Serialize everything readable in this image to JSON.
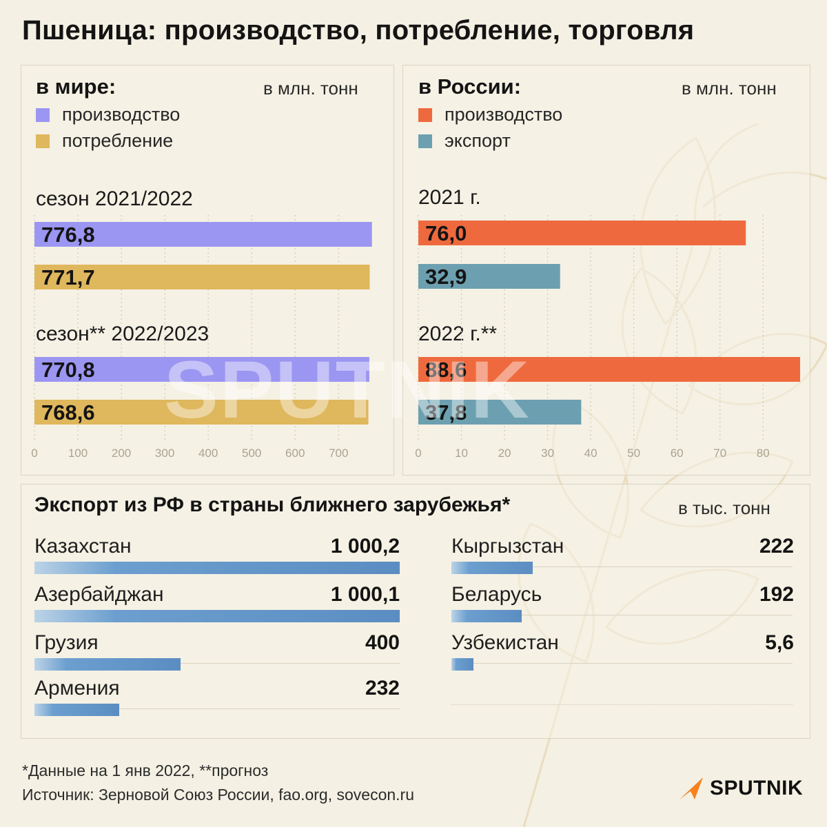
{
  "title": "Пшеница: производство, потребление, торговля",
  "world": {
    "heading": "в мире:",
    "unit": "в млн. тонн",
    "legend": [
      {
        "label": "производство",
        "color": "#9b96f2"
      },
      {
        "label": "потребление",
        "color": "#dfb75c"
      }
    ],
    "seasons": [
      {
        "label": "сезон 2021/2022"
      },
      {
        "label": "сезон** 2022/2023"
      }
    ]
  },
  "russia": {
    "heading": "в России:",
    "unit": "в млн. тонн",
    "legend": [
      {
        "label": "производство",
        "color": "#ee6a3e"
      },
      {
        "label": "экспорт",
        "color": "#6ca0b0"
      }
    ],
    "years": [
      {
        "label": "2021 г."
      },
      {
        "label": "2022 г.**"
      }
    ]
  },
  "export": {
    "title": "Экспорт из РФ в страны ближнего зарубежья*",
    "unit": "в тыс. тонн",
    "countries": [
      {
        "name": "Казахстан",
        "value_label": "1 000,2"
      },
      {
        "name": "Азербайджан",
        "value_label": "1 000,1"
      },
      {
        "name": "Грузия",
        "value_label": "400"
      },
      {
        "name": "Армения",
        "value_label": "232"
      },
      {
        "name": "Кыргызстан",
        "value_label": "222"
      },
      {
        "name": "Беларусь",
        "value_label": "192"
      },
      {
        "name": "Узбекистан",
        "value_label": "5,6"
      }
    ]
  },
  "chart_data": [
    {
      "type": "bar",
      "title": "в мире:",
      "unit": "в млн. тонн",
      "orientation": "horizontal",
      "categories": [
        "сезон 2021/2022",
        "сезон** 2022/2023"
      ],
      "series": [
        {
          "name": "производство",
          "values": [
            776.8,
            770.8
          ],
          "labels": [
            "776,8",
            "770,8"
          ],
          "color": "#9b96f2"
        },
        {
          "name": "потребление",
          "values": [
            771.7,
            768.6
          ],
          "labels": [
            "771,7",
            "768,6"
          ],
          "color": "#dfb75c"
        }
      ],
      "xlim": [
        0,
        790
      ],
      "xticks": [
        0,
        100,
        200,
        300,
        400,
        500,
        600,
        700
      ],
      "grid": true,
      "legend": "top-left"
    },
    {
      "type": "bar",
      "title": "в России:",
      "unit": "в млн. тонн",
      "orientation": "horizontal",
      "categories": [
        "2021 г.",
        "2022 г.**"
      ],
      "series": [
        {
          "name": "производство",
          "values": [
            76.0,
            88.6
          ],
          "labels": [
            "76,0",
            "88,6"
          ],
          "color": "#ee6a3e"
        },
        {
          "name": "экспорт",
          "values": [
            32.9,
            37.8
          ],
          "labels": [
            "32,9",
            "37,8"
          ],
          "color": "#6ca0b0"
        }
      ],
      "xlim": [
        0,
        88.6
      ],
      "xticks": [
        0,
        10,
        20,
        30,
        40,
        50,
        60,
        70,
        80
      ],
      "grid": true,
      "legend": "top-left"
    },
    {
      "type": "bar",
      "title": "Экспорт из РФ в страны ближнего зарубежья*",
      "unit": "в тыс. тонн",
      "orientation": "horizontal",
      "categories": [
        "Казахстан",
        "Азербайджан",
        "Грузия",
        "Армения",
        "Кыргызстан",
        "Беларусь",
        "Узбекистан"
      ],
      "values": [
        1000.2,
        1000.1,
        400,
        232,
        222,
        192,
        5.6
      ],
      "xlim": [
        0,
        1000.2
      ]
    }
  ],
  "footnote": "*Данные на 1 янв 2022, **прогноз",
  "source": "Источник: Зерновой Союз России, fao.org, sovecon.ru",
  "brand": "SPUTNIK",
  "watermark": "SPUTNIK",
  "colors": {
    "background": "#f4f0e3",
    "world_production": "#9b96f2",
    "world_consumption": "#dfb75c",
    "ru_production": "#ee6a3e",
    "ru_export": "#6ca0b0",
    "country_bar": "#5b8dc2",
    "brand_orange": "#f5821f"
  }
}
